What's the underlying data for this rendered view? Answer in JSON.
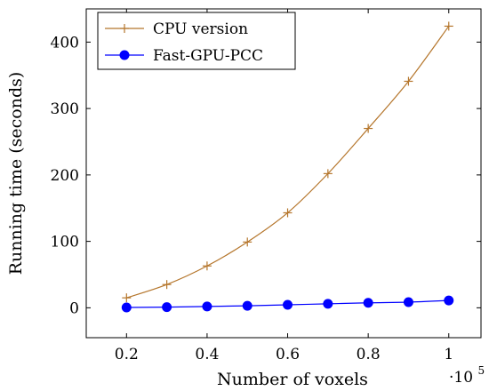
{
  "chart_data": {
    "type": "line",
    "title": "",
    "xlabel": "Number of voxels",
    "ylabel": "Running time (seconds)",
    "x_multiplier_base": "·10",
    "x_multiplier_exp": "5",
    "x": [
      0.2,
      0.3,
      0.4,
      0.5,
      0.6,
      0.7,
      0.8,
      0.9,
      1.0
    ],
    "xlim": [
      0.1,
      1.08
    ],
    "ylim": [
      -45,
      450
    ],
    "xticks": [
      0.2,
      0.4,
      0.6,
      0.8,
      1.0
    ],
    "xtick_labels": [
      "0.2",
      "0.4",
      "0.6",
      "0.8",
      "1"
    ],
    "yticks": [
      0,
      100,
      200,
      300,
      400
    ],
    "ytick_labels": [
      "0",
      "100",
      "200",
      "300",
      "400"
    ],
    "grid": false,
    "legend_position": "top-left",
    "series": [
      {
        "name": "CPU version",
        "values": [
          15,
          35,
          63,
          99,
          143,
          202,
          270,
          341,
          424
        ],
        "color": "#b5762c",
        "marker": "plus"
      },
      {
        "name": "Fast-GPU-PCC",
        "values": [
          0.5,
          1,
          2,
          3,
          4.5,
          6,
          7.5,
          8.5,
          11
        ],
        "color": "#0000ff",
        "marker": "circle"
      }
    ]
  }
}
